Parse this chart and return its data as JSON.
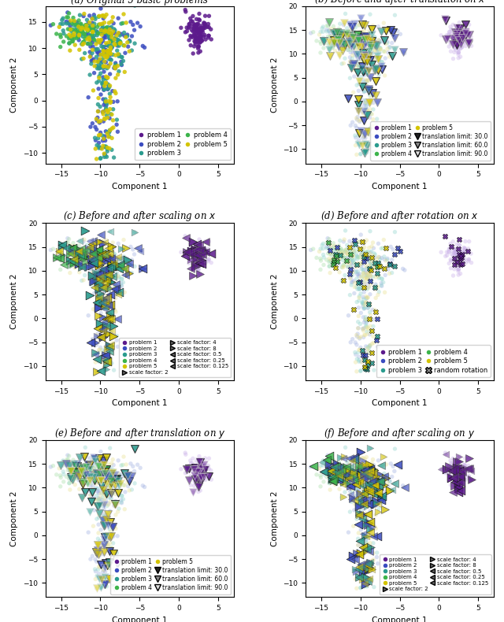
{
  "subplot_titles": [
    "(a) Original 5 basic problems",
    "(b) Before and after translation on $x$",
    "(c) Before and after scaling on $x$",
    "(d) Before and after rotation on $x$",
    "(e) Before and after translation on $y$",
    "(f) Before and after scaling on $y$"
  ],
  "problem_colors": [
    "#5c1a8c",
    "#3b4cc0",
    "#2a9b8e",
    "#3cb44b",
    "#d4c400"
  ],
  "problem_colors_light": [
    "#c9b0e8",
    "#9eb0e0",
    "#8ed4cc",
    "#a8dfa8",
    "#e8e090"
  ],
  "problem_labels": [
    "problem 1",
    "problem 2",
    "problem 3",
    "problem 4",
    "problem 5"
  ],
  "translation_limits": [
    30.0,
    60.0,
    90.0
  ],
  "scale_factors": [
    2,
    4,
    8,
    0.5,
    0.25,
    0.125
  ],
  "xlabel": "Component 1",
  "ylabel": "Component 2",
  "xlim": [
    -17,
    7
  ],
  "ylim_a": [
    -12,
    18
  ],
  "ylim": [
    -13,
    20
  ],
  "seed": 42
}
